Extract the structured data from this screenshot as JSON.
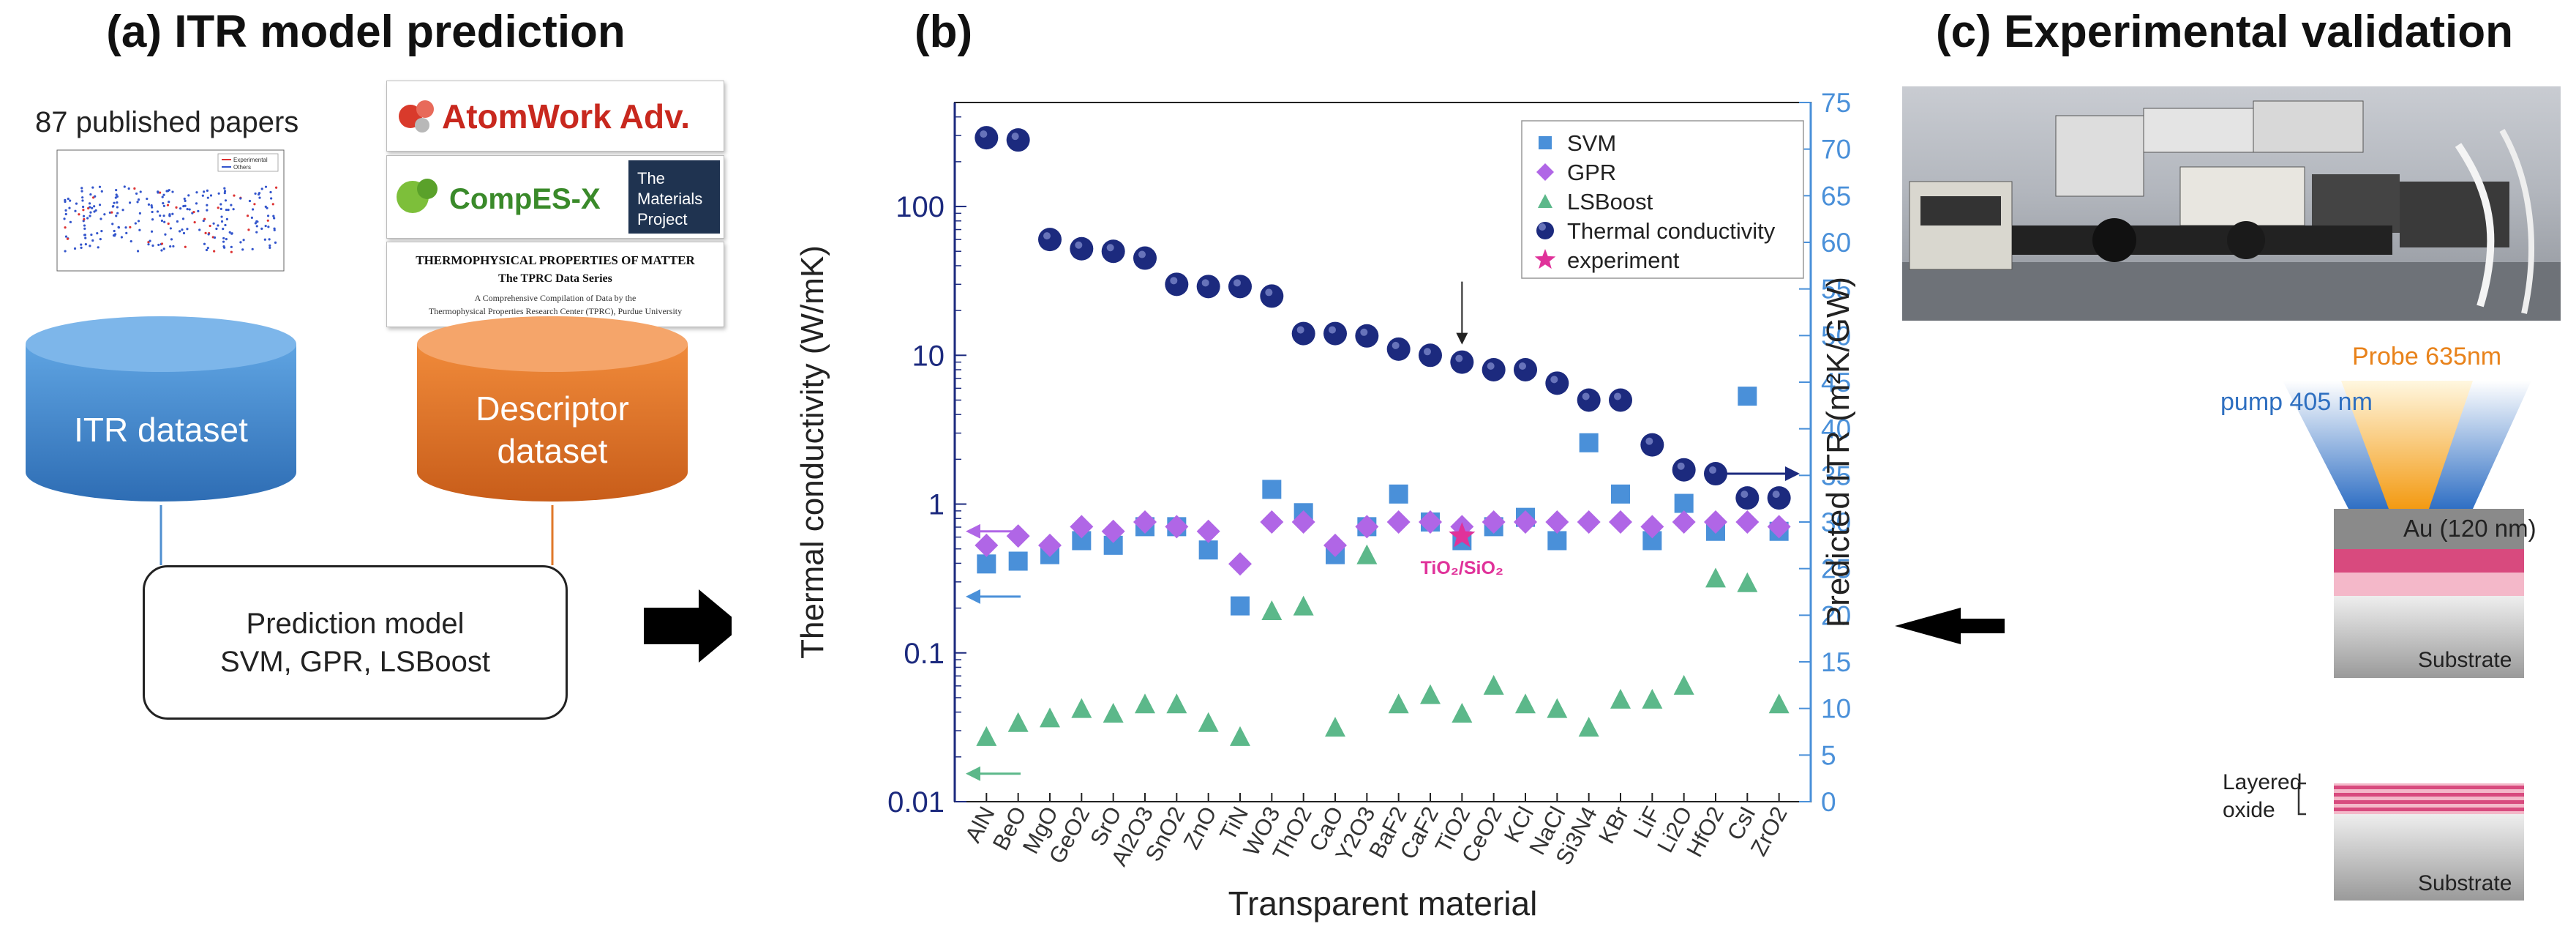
{
  "panel_a": {
    "title": "(a) ITR model prediction",
    "papers_label": "87 published papers",
    "mini_plot": {
      "legend": [
        "Experimental",
        "Others"
      ]
    },
    "logos": {
      "atomwork": "AtomWork Adv.",
      "compes": "CompES-X",
      "materials_project": [
        "The",
        "Materials",
        "Project"
      ],
      "tprc_title": "THERMOPHYSICAL PROPERTIES OF MATTER",
      "tprc_subtitle": "The TPRC Data Series",
      "tprc_line1": "A Comprehensive Compilation of Data by the",
      "tprc_line2": "Thermophysical Properties Research Center (TPRC), Purdue University"
    },
    "itr_dataset": "ITR dataset",
    "descriptor_dataset": [
      "Descriptor",
      "dataset"
    ],
    "prediction_model": [
      "Prediction model",
      "SVM, GPR, LSBoost"
    ],
    "colors": {
      "itr_cylinder": "#4f8fd0",
      "descriptor_cylinder": "#e0782a"
    }
  },
  "panel_b": {
    "title": "(b)"
  },
  "chart_data": {
    "type": "scatter",
    "title": "",
    "xlabel": "Transparent material",
    "ylabel_left": "Thermal conductivity (W/mK)",
    "ylabel_right": "Predicted ITR (m²K/GW)",
    "yscale_left": "log",
    "ylim_left": [
      0.01,
      500
    ],
    "yticks_left": [
      "0.01",
      "0.1",
      "1",
      "10",
      "100"
    ],
    "ylim_right": [
      0,
      75
    ],
    "yticks_right": [
      0,
      5,
      10,
      15,
      20,
      25,
      30,
      35,
      40,
      45,
      50,
      55,
      60,
      65,
      70,
      75
    ],
    "grid": false,
    "legend_position": "top-right",
    "categories": [
      "AlN",
      "BeO",
      "MgO",
      "GeO2",
      "SrO",
      "Al2O3",
      "SnO2",
      "ZnO",
      "TiN",
      "WO3",
      "ThO2",
      "CaO",
      "Y2O3",
      "BaF2",
      "CaF2",
      "TiO2",
      "CeO2",
      "KCl",
      "NaCl",
      "Si3N4",
      "KBr",
      "LiF",
      "Li2O",
      "HfO2",
      "CsI",
      "ZrO2"
    ],
    "series": [
      {
        "name": "SVM",
        "axis": "right",
        "marker": "square",
        "color": "#4a90d9",
        "values": [
          25.5,
          25.8,
          26.5,
          28.0,
          27.5,
          29.5,
          29.5,
          27.0,
          21.0,
          33.5,
          31.0,
          26.5,
          29.5,
          33.0,
          30.0,
          28.0,
          29.5,
          30.5,
          28.0,
          38.5,
          33.0,
          28.0,
          32.0,
          29.0,
          43.5,
          29.0
        ]
      },
      {
        "name": "GPR",
        "axis": "right",
        "marker": "diamond",
        "color": "#b066e6",
        "values": [
          27.5,
          28.5,
          27.5,
          29.5,
          29.0,
          30.0,
          29.5,
          29.0,
          25.5,
          30.0,
          30.0,
          27.5,
          29.5,
          30.0,
          30.0,
          29.5,
          30.0,
          30.0,
          30.0,
          30.0,
          30.0,
          29.5,
          30.0,
          30.0,
          30.0,
          29.5
        ]
      },
      {
        "name": "LSBoost",
        "axis": "right",
        "marker": "triangle",
        "color": "#5cb88a",
        "values": [
          7.0,
          8.5,
          9.0,
          10.0,
          9.5,
          10.5,
          10.5,
          8.5,
          7.0,
          20.5,
          21.0,
          8.0,
          26.5,
          10.5,
          11.5,
          9.5,
          12.5,
          10.5,
          10.0,
          8.0,
          11.0,
          11.0,
          12.5,
          24.0,
          23.5,
          10.5
        ]
      },
      {
        "name": "Thermal conductivity",
        "axis": "left",
        "marker": "circle",
        "color": "#1c2a7e",
        "values": [
          290,
          280,
          60,
          52,
          50,
          45,
          30,
          29,
          29,
          25,
          14,
          14,
          13.5,
          11,
          10,
          9,
          8,
          8,
          6.5,
          5,
          5,
          2.5,
          1.7,
          1.6,
          1.1,
          1.1
        ]
      },
      {
        "name": "experiment",
        "axis": "right",
        "marker": "star",
        "color": "#e0329a",
        "points": [
          {
            "category": "TiO2",
            "value": 28.5
          }
        ]
      }
    ],
    "annotations": {
      "tio2_sio2": "TiO₂/SiO₂"
    },
    "colors": {
      "left_axis": "#1c2a7e",
      "right_axis": "#4a90d9"
    }
  },
  "panel_c": {
    "title": "(c) Experimental validation",
    "probe_label": "Probe 635nm",
    "pump_label": "pump 405 nm",
    "au_label": "Au (120 nm)",
    "substrate_label": "Substrate",
    "layered_label": [
      "Layered",
      "oxide"
    ],
    "substrate2_label": "Substrate",
    "colors": {
      "probe": "#f3a020",
      "pump": "#3b7fd0",
      "film_dark": "#d84a7e",
      "film_light": "#f4b8c9"
    }
  }
}
